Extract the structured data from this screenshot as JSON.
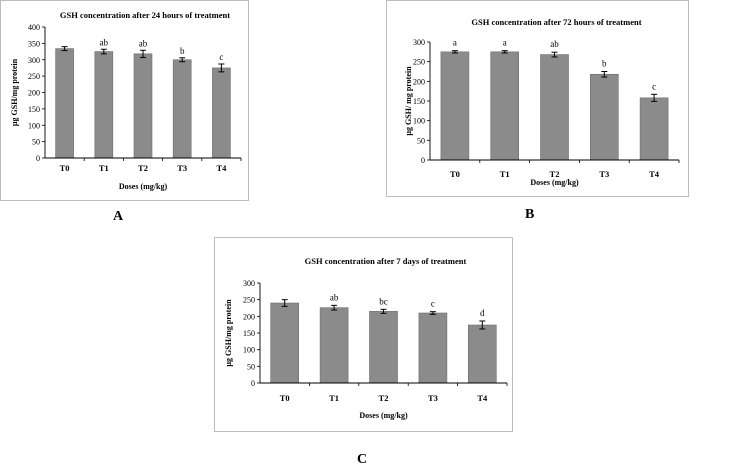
{
  "colors": {
    "bar": "#8b8b8b",
    "bar_edge": "#6d6d6d",
    "axis": "#000000",
    "frame": "#bdbdbd"
  },
  "chart_data": [
    {
      "panel_label": "A",
      "type": "bar",
      "title": "GSH concentration after 24 hours of treatment",
      "xlabel": "Doses (mg/kg)",
      "ylabel": "µg GSH/mg protein",
      "categories": [
        "T0",
        "T1",
        "T2",
        "T3",
        "T4"
      ],
      "values": [
        334,
        325,
        318,
        300,
        275
      ],
      "errors": [
        6,
        7,
        11,
        6,
        12
      ],
      "significance": [
        "",
        "ab",
        "ab",
        "b",
        "c"
      ],
      "ylim": [
        0,
        400
      ],
      "yticks": [
        "0",
        "50",
        "100",
        "150",
        "200",
        "250",
        "300",
        "350",
        "400"
      ],
      "grid": false
    },
    {
      "panel_label": "B",
      "type": "bar",
      "title": "GSH concentration after 72 hours of treatment",
      "xlabel": "Doses (mg/kg)",
      "ylabel": "µg GSH/ mg protein",
      "categories": [
        "T0",
        "T1",
        "T2",
        "T3",
        "T4"
      ],
      "values": [
        275,
        275,
        268,
        218,
        158
      ],
      "errors": [
        3,
        3,
        6,
        7,
        9
      ],
      "significance": [
        "a",
        "a",
        "ab",
        "b",
        "c"
      ],
      "ylim": [
        0,
        300
      ],
      "yticks": [
        "0",
        "50",
        "100",
        "150",
        "200",
        "250",
        "300"
      ],
      "grid": false
    },
    {
      "panel_label": "C",
      "type": "bar",
      "title": "GSH concentration after 7 days of treatment",
      "xlabel": "Doses (mg/kg)",
      "ylabel": "µg GSH/mg protein",
      "categories": [
        "T0",
        "T1",
        "T2",
        "T3",
        "T4"
      ],
      "values": [
        240,
        226,
        215,
        210,
        174
      ],
      "errors": [
        10,
        7,
        6,
        4,
        12
      ],
      "significance": [
        "",
        "ab",
        "bc",
        "c",
        "d"
      ],
      "ylim": [
        0,
        300
      ],
      "yticks": [
        "0",
        "50",
        "100",
        "150",
        "200",
        "250",
        "300"
      ],
      "grid": false
    }
  ]
}
